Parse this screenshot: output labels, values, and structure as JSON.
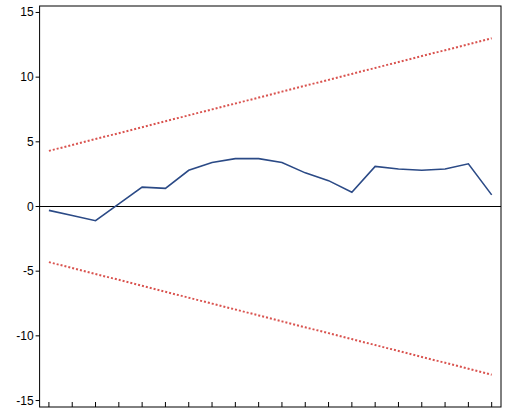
{
  "chart_data": {
    "type": "line",
    "categories": [
      null,
      null,
      null,
      null,
      null,
      null,
      null,
      null,
      null,
      null,
      null,
      null,
      null,
      null,
      null,
      null,
      null,
      null,
      null,
      null
    ],
    "series": [
      {
        "color": "#2b4a86",
        "line_style": "solid",
        "values": [
          -0.3,
          -0.7,
          -1.1,
          0.2,
          1.5,
          1.4,
          2.8,
          3.4,
          3.7,
          3.7,
          3.4,
          2.6,
          2.0,
          1.1,
          3.1,
          2.9,
          2.8,
          2.9,
          3.3,
          0.9
        ]
      },
      {
        "color": "#d9534f",
        "line_style": "dotted",
        "values": [
          4.3,
          4.76,
          5.22,
          5.67,
          6.13,
          6.59,
          7.05,
          7.51,
          7.96,
          8.42,
          8.88,
          9.34,
          9.79,
          10.25,
          10.71,
          11.17,
          11.63,
          12.08,
          12.54,
          13.0
        ]
      },
      {
        "color": "#d9534f",
        "line_style": "dotted",
        "values": [
          -4.3,
          -4.76,
          -5.22,
          -5.67,
          -6.13,
          -6.59,
          -7.05,
          -7.51,
          -7.96,
          -8.42,
          -8.88,
          -9.34,
          -9.79,
          -10.25,
          -10.71,
          -11.17,
          -11.63,
          -12.08,
          -12.54,
          -13.0
        ]
      }
    ],
    "ylim": [
      -15.5,
      15.5
    ],
    "yticks": [
      -15,
      -10,
      -5,
      0,
      5,
      10,
      15
    ],
    "tick_labels": "y",
    "grid": false
  }
}
